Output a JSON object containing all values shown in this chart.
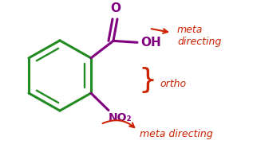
{
  "bg_color": "#ffffff",
  "benzene_color": "#228B22",
  "group_color": "#800080",
  "annotation_color": "#cc2200",
  "figsize": [
    3.22,
    1.91
  ],
  "dpi": 100,
  "meta_top_text": "meta\ndirecting",
  "ortho_text": "ortho",
  "meta_bottom_text": "meta directing"
}
